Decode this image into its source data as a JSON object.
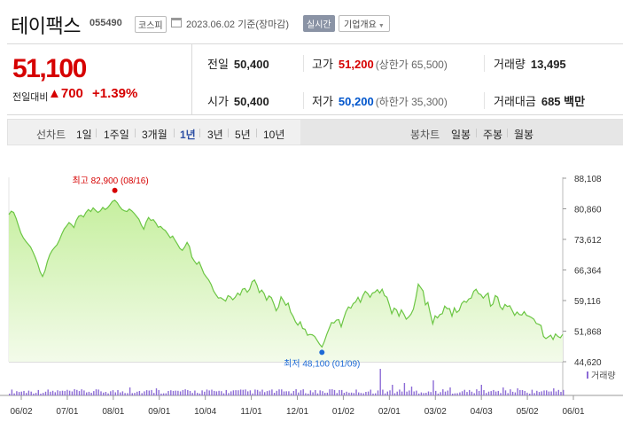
{
  "header": {
    "name": "테이팩스",
    "code": "055490",
    "market": "코스피",
    "date": "2023.06.02  기준(장마감)",
    "realtime_btn": "실시간",
    "corp_btn": "기업개요",
    "calendar_icon": "calendar-icon"
  },
  "quote": {
    "price": "51,100",
    "change_label": "전일대비",
    "change_value": "▲700",
    "change_pct": "+1.39%",
    "prev_close_label": "전일",
    "prev_close": "50,400",
    "high_label": "고가",
    "high": "51,200",
    "upper_limit": "(상한가 65,500)",
    "volume_label": "거래량",
    "volume": "13,495",
    "open_label": "시가",
    "open": "50,400",
    "low_label": "저가",
    "low": "50,200",
    "lower_limit": "(하한가 35,300)",
    "amount_label": "거래대금",
    "amount": "685",
    "amount_unit": "백만",
    "up_color": "#d60000",
    "down_color": "#0055cc"
  },
  "periods": {
    "line_label": "선차트",
    "line_items": [
      "1일",
      "1주일",
      "3개월",
      "1년",
      "3년",
      "5년",
      "10년"
    ],
    "active": "1년",
    "candle_label": "봉차트",
    "candle_items": [
      "일봉",
      "주봉",
      "월봉"
    ]
  },
  "chart_data": {
    "type": "area",
    "y_ticks": [
      "88,108",
      "80,860",
      "73,612",
      "66,364",
      "59,116",
      "51,868",
      "44,620"
    ],
    "ylim": [
      44620,
      88108
    ],
    "x_ticks": [
      "06/02",
      "07/01",
      "08/01",
      "09/01",
      "10/04",
      "11/01",
      "12/01",
      "01/02",
      "02/01",
      "03/02",
      "04/03",
      "05/02",
      "06/01"
    ],
    "high_annotation": "최고 82,900 (08/16)",
    "low_annotation": "최저 48,100 (01/09)",
    "high_index": 44,
    "low_index": 130,
    "volume_legend": "거래량",
    "line_color": "#6cc644",
    "fill_color": "#c6ef9f",
    "values": [
      79500,
      80300,
      80000,
      78600,
      76800,
      75100,
      74000,
      73200,
      72500,
      71800,
      70600,
      69300,
      67800,
      65900,
      64800,
      66200,
      68400,
      70000,
      71000,
      71700,
      72300,
      73500,
      74900,
      76100,
      76800,
      77600,
      77100,
      76400,
      78100,
      79100,
      79300,
      78900,
      80000,
      80700,
      80200,
      81100,
      80500,
      80000,
      80400,
      81200,
      80700,
      81100,
      81800,
      82600,
      82900,
      82300,
      81400,
      80700,
      80400,
      80200,
      80800,
      80400,
      79800,
      79100,
      78400,
      77000,
      76000,
      77700,
      78800,
      78100,
      78300,
      77500,
      76500,
      76700,
      76100,
      75700,
      74900,
      74000,
      74400,
      73400,
      72500,
      71500,
      71000,
      71800,
      72900,
      71900,
      69400,
      68500,
      67700,
      68300,
      66900,
      65500,
      64700,
      64000,
      62900,
      61400,
      60500,
      59700,
      59800,
      59400,
      59000,
      60300,
      60000,
      59300,
      59900,
      60900,
      60400,
      61800,
      62000,
      61100,
      61800,
      63600,
      64000,
      62800,
      61000,
      61600,
      60800,
      59200,
      60200,
      59800,
      58400,
      56700,
      57600,
      60000,
      59100,
      58000,
      58500,
      56400,
      55400,
      54100,
      53300,
      54100,
      52500,
      52300,
      50900,
      51100,
      51000,
      50600,
      49700,
      48800,
      48100,
      49400,
      51100,
      52500,
      53900,
      53800,
      54500,
      54600,
      52900,
      54800,
      56500,
      57600,
      57300,
      58400,
      58800,
      59900,
      58700,
      60300,
      61300,
      60800,
      59900,
      60900,
      61100,
      61700,
      60900,
      61800,
      60300,
      59900,
      58100,
      56000,
      57300,
      56900,
      55400,
      56900,
      55900,
      54700,
      55200,
      55900,
      57100,
      59700,
      63000,
      62200,
      61400,
      58100,
      58700,
      56100,
      53600,
      55500,
      55000,
      55800,
      56000,
      57800,
      57200,
      57200,
      55400,
      57400,
      56300,
      56800,
      58400,
      59000,
      58700,
      59500,
      59700,
      61300,
      61800,
      60800,
      60500,
      59700,
      60400,
      60900,
      57800,
      58300,
      60300,
      59900,
      57700,
      57000,
      58200,
      57700,
      57900,
      56800,
      55600,
      56400,
      55800,
      55700,
      56500,
      55600,
      55400,
      55100,
      54700,
      53700,
      53500,
      53200,
      50600,
      50100,
      50500,
      50900,
      49900,
      51200,
      50600,
      50300,
      51100
    ]
  }
}
